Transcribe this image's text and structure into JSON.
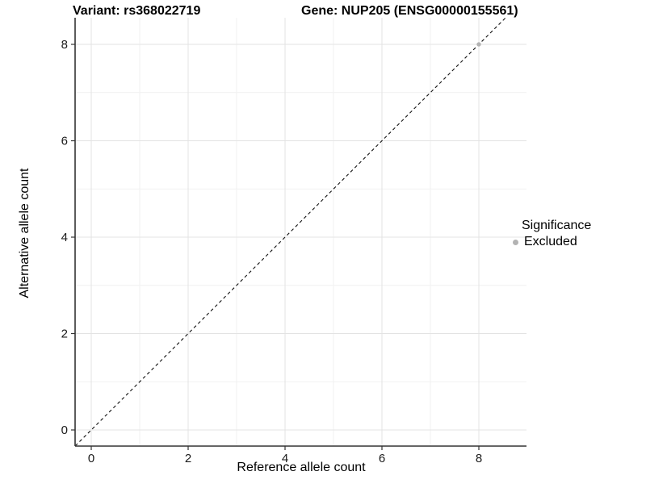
{
  "figure": {
    "title_left": "Variant: rs368022719",
    "title_right": "Gene: NUP205 (ENSG00000155561)"
  },
  "chart_data": {
    "type": "scatter",
    "title": "Variant: rs368022719   Gene: NUP205 (ENSG00000155561)",
    "xlabel": "Reference allele count",
    "ylabel": "Alternative allele count",
    "x_ticks": [
      0,
      2,
      4,
      6,
      8
    ],
    "y_ticks": [
      0,
      2,
      4,
      6,
      8
    ],
    "x_minor_ticks": [
      1,
      3,
      5,
      7
    ],
    "y_minor_ticks": [
      1,
      3,
      5,
      7
    ],
    "xlim": [
      -0.33,
      8.98
    ],
    "ylim": [
      -0.33,
      8.6
    ],
    "grid": "on",
    "reference_line": {
      "type": "identity",
      "style": "dashed",
      "color": "#000000"
    },
    "series": [
      {
        "name": "Excluded",
        "color": "#b3b3b3",
        "points": [
          {
            "x": 8,
            "y": 8
          }
        ]
      }
    ],
    "legend": {
      "title": "Significance",
      "position": "right",
      "items": [
        {
          "label": "Excluded",
          "color": "#b3b3b3"
        }
      ]
    }
  },
  "colors": {
    "background": "#ffffff",
    "grid_major": "#e3e3e3",
    "grid_minor": "#f1f1f1",
    "axis_line": "#333333",
    "tick_mark": "#333333",
    "tick_label": "#1a1a1a",
    "identity_line": "#111111",
    "point": "#b3b3b3"
  }
}
